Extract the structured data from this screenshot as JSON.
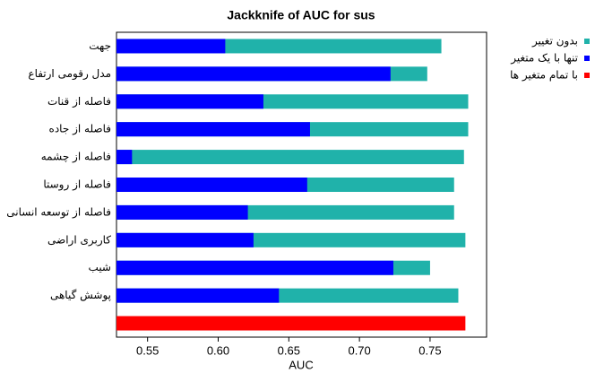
{
  "chart_data": {
    "type": "bar",
    "orientation": "horizontal",
    "title": "Jackknife of AUC for sus",
    "x_label": "AUC",
    "categories": [
      "جهت",
      "مدل رقومی ارتفاع",
      "فاصله از قنات",
      "فاصله از جاده",
      "فاصله از چشمه",
      "فاصله از روستا",
      "فاصله از توسعه انسانی",
      "کاربری اراضی",
      "شیب",
      "پوشش گیاهی",
      null
    ],
    "series": [
      {
        "name": "بدون تغییر",
        "color": "#20b2aa",
        "values": [
          0.758,
          0.748,
          0.777,
          0.777,
          0.774,
          0.767,
          0.767,
          0.775,
          0.75,
          0.77,
          null
        ]
      },
      {
        "name": "تنها با یک متغیر",
        "color": "#0000ff",
        "values": [
          0.605,
          0.722,
          0.632,
          0.665,
          0.539,
          0.663,
          0.621,
          0.625,
          0.724,
          0.643,
          null
        ]
      },
      {
        "name": "با تمام متغیر ها",
        "color": "#ff0000",
        "values": [
          null,
          null,
          null,
          null,
          null,
          null,
          null,
          null,
          null,
          null,
          0.775
        ]
      }
    ],
    "xlim": [
      0.528,
      0.79
    ],
    "xticks": [
      0.55,
      {
        "value": 0.6,
        "label": "0.60"
      },
      0.65,
      {
        "value": 0.7,
        "label": "0.70"
      },
      0.75
    ],
    "legend": "right"
  }
}
